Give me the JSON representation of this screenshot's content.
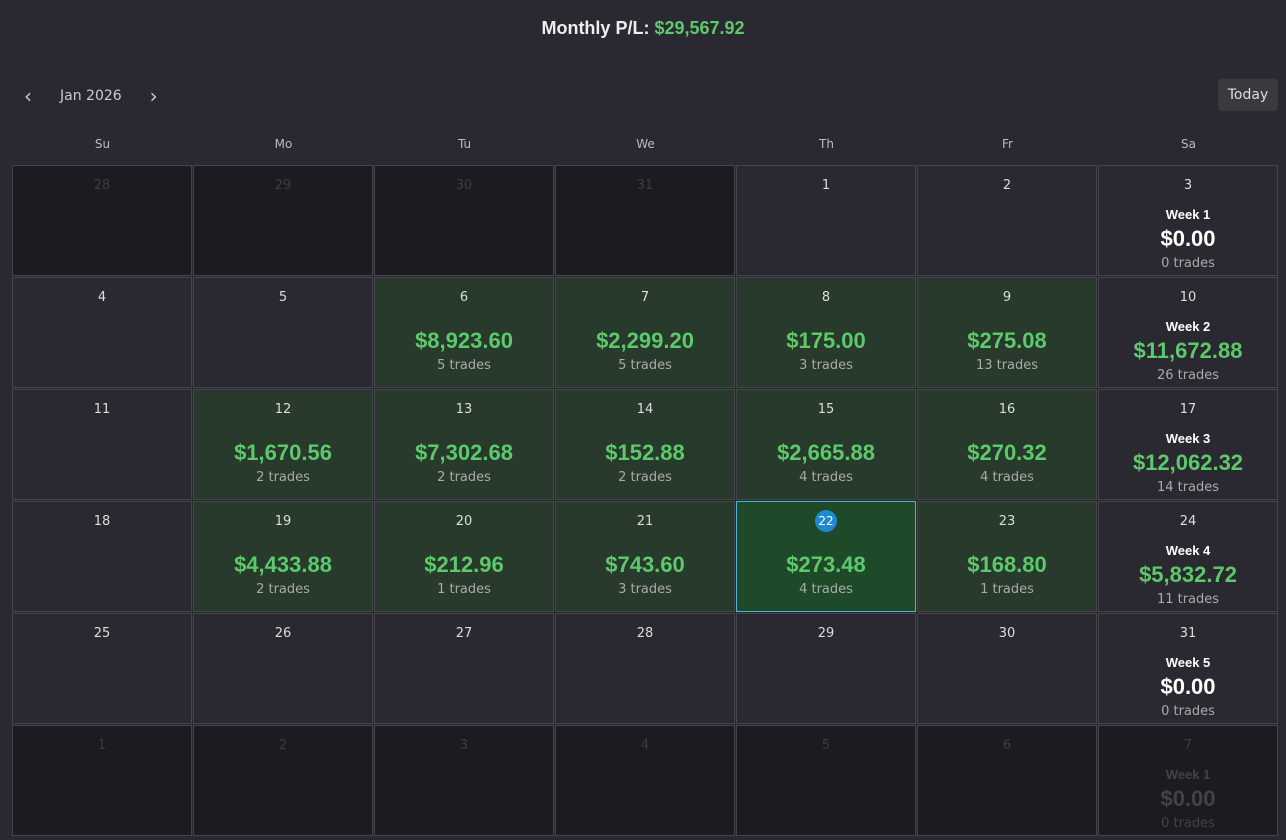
{
  "header": {
    "title": "Monthly P/L:",
    "value": "$29,567.92"
  },
  "nav": {
    "prev": "‹",
    "month": "Jan 2026",
    "next": "›",
    "today": "Today"
  },
  "weekdays": [
    "Su",
    "Mo",
    "Tu",
    "We",
    "Th",
    "Fr",
    "Sa"
  ],
  "rows": [
    [
      {
        "day": "28",
        "state": "outside"
      },
      {
        "day": "29",
        "state": "outside"
      },
      {
        "day": "30",
        "state": "outside"
      },
      {
        "day": "31",
        "state": "outside"
      },
      {
        "day": "1",
        "state": "plain"
      },
      {
        "day": "2",
        "state": "plain"
      },
      {
        "day": "3",
        "state": "plain",
        "week": "Week 1",
        "pnl": "$0.00",
        "trades": "0 trades",
        "tone": "neutral"
      }
    ],
    [
      {
        "day": "4",
        "state": "plain"
      },
      {
        "day": "5",
        "state": "plain"
      },
      {
        "day": "6",
        "state": "profit",
        "pnl": "$8,923.60",
        "trades": "5 trades"
      },
      {
        "day": "7",
        "state": "profit",
        "pnl": "$2,299.20",
        "trades": "5 trades"
      },
      {
        "day": "8",
        "state": "profit",
        "pnl": "$175.00",
        "trades": "3 trades"
      },
      {
        "day": "9",
        "state": "profit",
        "pnl": "$275.08",
        "trades": "13 trades"
      },
      {
        "day": "10",
        "state": "plain",
        "week": "Week 2",
        "pnl": "$11,672.88",
        "trades": "26 trades",
        "tone": "gain"
      }
    ],
    [
      {
        "day": "11",
        "state": "plain"
      },
      {
        "day": "12",
        "state": "profit",
        "pnl": "$1,670.56",
        "trades": "2 trades"
      },
      {
        "day": "13",
        "state": "profit",
        "pnl": "$7,302.68",
        "trades": "2 trades"
      },
      {
        "day": "14",
        "state": "profit",
        "pnl": "$152.88",
        "trades": "2 trades"
      },
      {
        "day": "15",
        "state": "profit",
        "pnl": "$2,665.88",
        "trades": "4 trades"
      },
      {
        "day": "16",
        "state": "profit",
        "pnl": "$270.32",
        "trades": "4 trades"
      },
      {
        "day": "17",
        "state": "plain",
        "week": "Week 3",
        "pnl": "$12,062.32",
        "trades": "14 trades",
        "tone": "gain"
      }
    ],
    [
      {
        "day": "18",
        "state": "plain"
      },
      {
        "day": "19",
        "state": "profit",
        "pnl": "$4,433.88",
        "trades": "2 trades"
      },
      {
        "day": "20",
        "state": "profit",
        "pnl": "$212.96",
        "trades": "1 trades"
      },
      {
        "day": "21",
        "state": "profit",
        "pnl": "$743.60",
        "trades": "3 trades"
      },
      {
        "day": "22",
        "state": "today",
        "pnl": "$273.48",
        "trades": "4 trades"
      },
      {
        "day": "23",
        "state": "profit",
        "pnl": "$168.80",
        "trades": "1 trades"
      },
      {
        "day": "24",
        "state": "plain",
        "week": "Week 4",
        "pnl": "$5,832.72",
        "trades": "11 trades",
        "tone": "gain"
      }
    ],
    [
      {
        "day": "25",
        "state": "plain"
      },
      {
        "day": "26",
        "state": "plain"
      },
      {
        "day": "27",
        "state": "plain"
      },
      {
        "day": "28",
        "state": "plain"
      },
      {
        "day": "29",
        "state": "plain"
      },
      {
        "day": "30",
        "state": "plain"
      },
      {
        "day": "31",
        "state": "plain",
        "week": "Week 5",
        "pnl": "$0.00",
        "trades": "0 trades",
        "tone": "neutral"
      }
    ],
    [
      {
        "day": "1",
        "state": "outside"
      },
      {
        "day": "2",
        "state": "outside"
      },
      {
        "day": "3",
        "state": "outside"
      },
      {
        "day": "4",
        "state": "outside"
      },
      {
        "day": "5",
        "state": "outside"
      },
      {
        "day": "6",
        "state": "outside"
      },
      {
        "day": "7",
        "state": "outside-week",
        "week": "Week 1",
        "pnl": "$0.00",
        "trades": "0 trades",
        "tone": "neutral"
      }
    ]
  ]
}
